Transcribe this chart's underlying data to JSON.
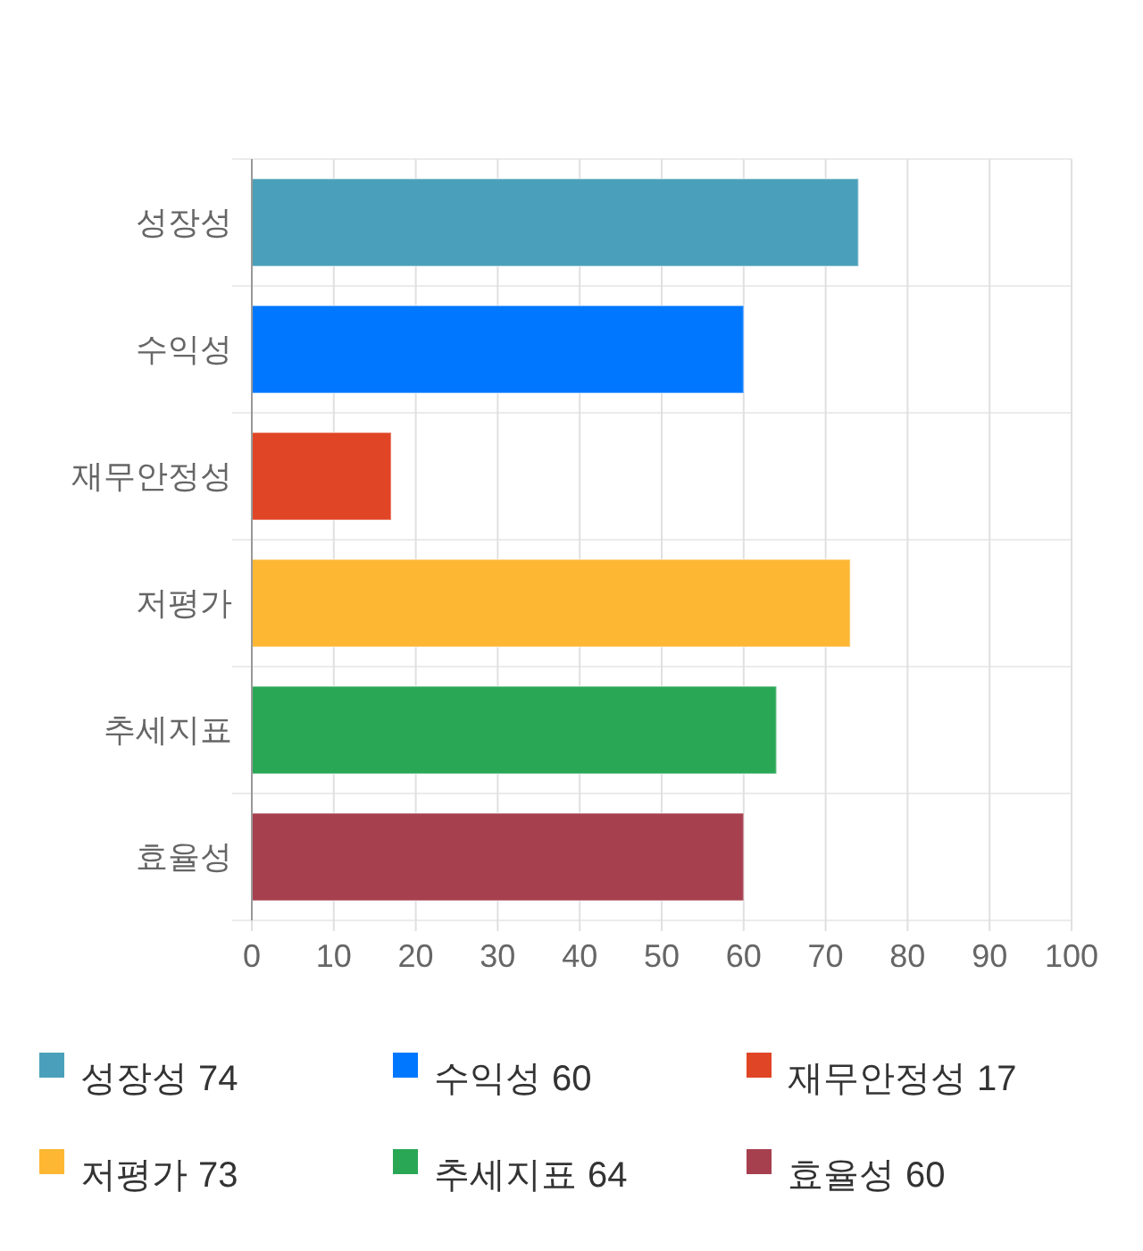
{
  "chart_data": {
    "type": "bar",
    "orientation": "horizontal",
    "stacked": true,
    "categories": [
      "성장성",
      "수익성",
      "재무안정성",
      "저평가",
      "추세지표",
      "효율성"
    ],
    "series": [
      {
        "name": "성장성",
        "color": "#4aa0ba",
        "values": [
          74,
          null,
          null,
          null,
          null,
          null
        ]
      },
      {
        "name": "수익성",
        "color": "#0077ff",
        "values": [
          null,
          60,
          null,
          null,
          null,
          null
        ]
      },
      {
        "name": "재무안정성",
        "color": "#e04526",
        "values": [
          null,
          null,
          17,
          null,
          null,
          null
        ]
      },
      {
        "name": "저평가",
        "color": "#fdb733",
        "values": [
          null,
          null,
          null,
          73,
          null,
          null
        ]
      },
      {
        "name": "추세지표",
        "color": "#29a755",
        "values": [
          null,
          null,
          null,
          null,
          64,
          null
        ]
      },
      {
        "name": "효율성",
        "color": "#a6404f",
        "values": [
          null,
          null,
          null,
          null,
          null,
          60
        ]
      }
    ],
    "xlim": [
      0,
      100
    ],
    "xticks": [
      0,
      10,
      20,
      30,
      40,
      50,
      60,
      70,
      80,
      90,
      100
    ],
    "annotations": [
      "74",
      "60",
      "17",
      "73",
      "64",
      "60"
    ],
    "grid": true,
    "legend": "bottom"
  }
}
